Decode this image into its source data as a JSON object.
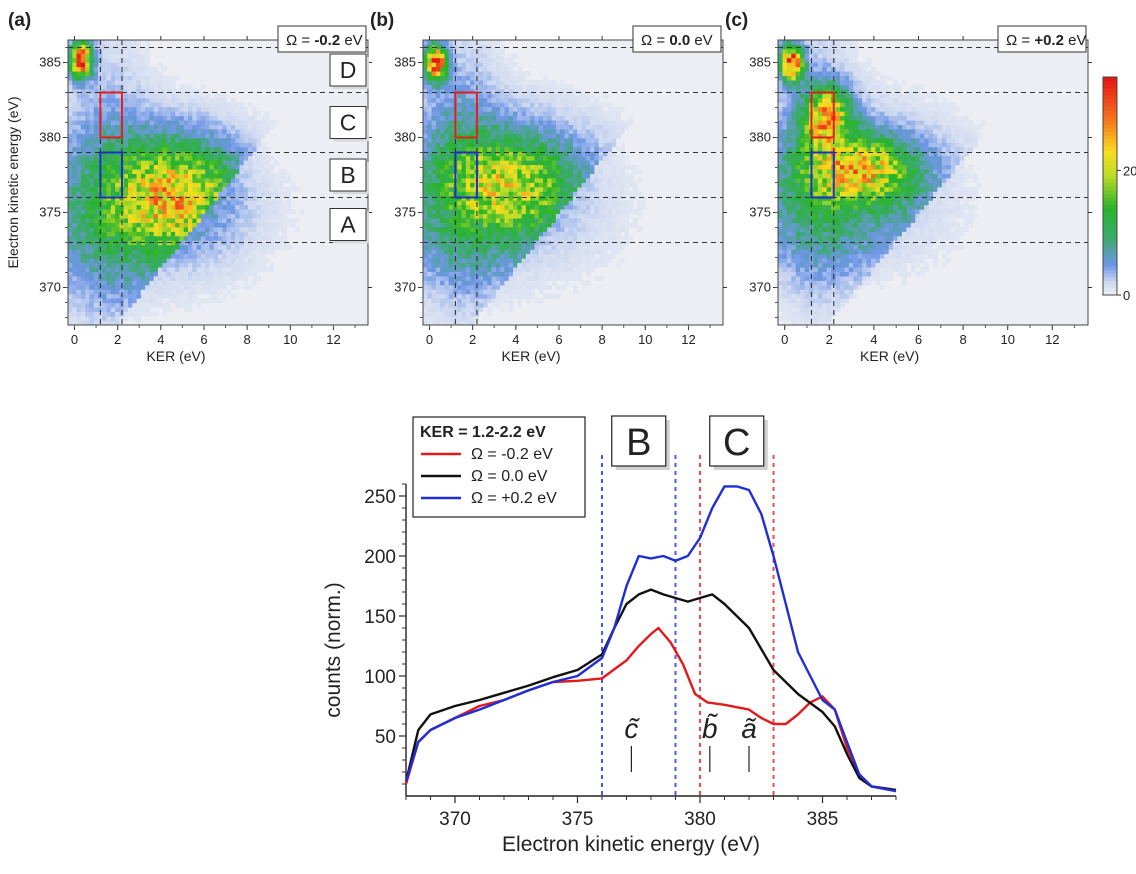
{
  "chart_data": [
    {
      "type": "heatmap",
      "panel_label": "(a)",
      "omega_symbol": "Ω",
      "omega_value": "-0.2",
      "omega_unit": "eV",
      "xlabel": "KER (eV)",
      "ylabel": "Electron kinetic energy",
      "ylabel_unit": "(eV)",
      "xlim": [
        -0.3,
        13.6
      ],
      "ylim": [
        367.5,
        386.5
      ],
      "xticks": [
        0,
        2,
        4,
        6,
        8,
        10,
        12
      ],
      "yticks": [
        370,
        375,
        380,
        385
      ],
      "hlines": [
        373,
        376,
        379,
        383,
        386
      ],
      "vlines": [
        1.2,
        2.2
      ],
      "region_labels": [
        {
          "text": "D",
          "y": 384.5
        },
        {
          "text": "C",
          "y": 381
        },
        {
          "text": "B",
          "y": 377.5
        },
        {
          "text": "A",
          "y": 374.2
        }
      ],
      "boxes": [
        {
          "color": "#e02020",
          "x": [
            1.2,
            2.2
          ],
          "y": [
            380,
            383
          ]
        },
        {
          "color": "#2030c0",
          "x": [
            1.2,
            2.2
          ],
          "y": [
            376,
            379
          ]
        }
      ],
      "blobs": [
        {
          "x": 0.3,
          "y": 385.2,
          "sx": 0.35,
          "sy": 0.8,
          "amp": 32
        },
        {
          "x": 4.7,
          "y": 376.2,
          "sx": 2.0,
          "sy": 2.6,
          "amp": 19
        },
        {
          "x": 3.0,
          "y": 374.5,
          "sx": 4.2,
          "sy": 3.6,
          "amp": 6.5
        },
        {
          "x": 1.5,
          "y": 377.5,
          "sx": 1.4,
          "sy": 6.5,
          "amp": 4
        }
      ]
    },
    {
      "type": "heatmap",
      "panel_label": "(b)",
      "omega_symbol": "Ω",
      "omega_value": "0.0",
      "omega_unit": "eV",
      "xlabel": "KER (eV)",
      "xlim": [
        -0.3,
        13.6
      ],
      "ylim": [
        367.5,
        386.5
      ],
      "xticks": [
        0,
        2,
        4,
        6,
        8,
        10,
        12
      ],
      "yticks": [
        370,
        375,
        380,
        385
      ],
      "hlines": [
        373,
        376,
        379,
        383,
        386
      ],
      "vlines": [
        1.2,
        2.2
      ],
      "boxes": [
        {
          "color": "#e02020",
          "x": [
            1.2,
            2.2
          ],
          "y": [
            380,
            383
          ]
        },
        {
          "color": "#2030c0",
          "x": [
            1.2,
            2.2
          ],
          "y": [
            376,
            379
          ]
        }
      ],
      "blobs": [
        {
          "x": 0.3,
          "y": 385.0,
          "sx": 0.35,
          "sy": 0.8,
          "amp": 30
        },
        {
          "x": 4.0,
          "y": 377.0,
          "sx": 1.9,
          "sy": 2.2,
          "amp": 13
        },
        {
          "x": 3.2,
          "y": 375.5,
          "sx": 3.8,
          "sy": 3.8,
          "amp": 8
        },
        {
          "x": 1.4,
          "y": 378.5,
          "sx": 1.3,
          "sy": 5.5,
          "amp": 5
        }
      ]
    },
    {
      "type": "heatmap",
      "panel_label": "(c)",
      "omega_symbol": "Ω",
      "omega_value": "+0.2",
      "omega_unit": "eV",
      "xlabel": "KER (eV)",
      "xlim": [
        -0.3,
        13.6
      ],
      "ylim": [
        367.5,
        386.5
      ],
      "xticks": [
        0,
        2,
        4,
        6,
        8,
        10,
        12
      ],
      "yticks": [
        370,
        375,
        380,
        385
      ],
      "hlines": [
        373,
        376,
        379,
        383,
        386
      ],
      "vlines": [
        1.2,
        2.2
      ],
      "boxes": [
        {
          "color": "#e02020",
          "x": [
            1.2,
            2.2
          ],
          "y": [
            380,
            383
          ]
        },
        {
          "color": "#2030c0",
          "x": [
            1.2,
            2.2
          ],
          "y": [
            376,
            379
          ]
        }
      ],
      "blobs": [
        {
          "x": 0.3,
          "y": 385.0,
          "sx": 0.35,
          "sy": 0.8,
          "amp": 32
        },
        {
          "x": 1.9,
          "y": 381.5,
          "sx": 0.7,
          "sy": 1.3,
          "amp": 20
        },
        {
          "x": 3.5,
          "y": 378.0,
          "sx": 1.6,
          "sy": 1.5,
          "amp": 17
        },
        {
          "x": 3.0,
          "y": 376.0,
          "sx": 3.3,
          "sy": 3.5,
          "amp": 8
        },
        {
          "x": 1.4,
          "y": 378.5,
          "sx": 1.2,
          "sy": 5.5,
          "amp": 5
        }
      ]
    },
    {
      "type": "line",
      "xlabel": "Electron kinetic energy (eV)",
      "ylabel": "counts (norm.)",
      "xlim": [
        368,
        388
      ],
      "ylim": [
        0,
        260
      ],
      "xticks": [
        370,
        375,
        380,
        385
      ],
      "yticks": [
        50,
        100,
        150,
        200,
        250
      ],
      "legend_title": "KER = 1.2-2.2 eV",
      "legend_placement": "top-left",
      "series": [
        {
          "name": "Ω = -0.2 eV",
          "color": "#e31a1c",
          "x": [
            368,
            368.5,
            369,
            370,
            371,
            372,
            373,
            374,
            375,
            376,
            377,
            377.5,
            378,
            378.3,
            378.8,
            379.3,
            379.8,
            380.3,
            381,
            382,
            382.5,
            383,
            383.5,
            384,
            384.5,
            385,
            385.5,
            386,
            386.5,
            387,
            388
          ],
          "y": [
            10,
            45,
            55,
            65,
            75,
            80,
            88,
            95,
            96,
            98,
            113,
            125,
            135,
            140,
            128,
            110,
            85,
            78,
            76,
            72,
            65,
            60,
            60,
            68,
            78,
            83,
            72,
            40,
            18,
            8,
            5
          ]
        },
        {
          "name": "Ω = 0.0 eV",
          "color": "#111111",
          "x": [
            368,
            368.5,
            369,
            370,
            371,
            372,
            373,
            374,
            375,
            376,
            376.5,
            377,
            377.5,
            378,
            378.5,
            379,
            379.5,
            380,
            380.5,
            381,
            382,
            383,
            384,
            385,
            385.5,
            386,
            386.5,
            387,
            388
          ],
          "y": [
            12,
            55,
            68,
            75,
            80,
            86,
            92,
            99,
            105,
            118,
            140,
            160,
            168,
            172,
            168,
            165,
            162,
            165,
            168,
            160,
            140,
            105,
            85,
            70,
            58,
            35,
            15,
            8,
            5
          ]
        },
        {
          "name": "Ω = +0.2 eV",
          "color": "#1f2fd6",
          "x": [
            368,
            368.5,
            369,
            370,
            371,
            372,
            373,
            374,
            375,
            376,
            376.5,
            377,
            377.5,
            378,
            378.5,
            379,
            379.5,
            380,
            380.5,
            381,
            381.5,
            382,
            382.5,
            383,
            383.5,
            384,
            385,
            385.5,
            386,
            386.5,
            387,
            388
          ],
          "y": [
            12,
            45,
            55,
            65,
            72,
            80,
            88,
            95,
            100,
            115,
            140,
            175,
            200,
            198,
            200,
            196,
            200,
            215,
            240,
            258,
            258,
            255,
            235,
            200,
            160,
            120,
            80,
            72,
            45,
            18,
            8,
            4
          ]
        }
      ],
      "vlines": [
        {
          "x": 376,
          "color": "#4a5cf0"
        },
        {
          "x": 379,
          "color": "#4a5cf0"
        },
        {
          "x": 380,
          "color": "#f04a4a"
        },
        {
          "x": 383,
          "color": "#f04a4a"
        }
      ],
      "region_labels": [
        {
          "text": "B",
          "x": 377.5
        },
        {
          "text": "C",
          "x": 381.5
        }
      ],
      "annotations": [
        {
          "text": "c̃",
          "x": 377.2
        },
        {
          "text": "b̃",
          "x": 380.4
        },
        {
          "text": "ã",
          "x": 382.0
        }
      ]
    }
  ],
  "colorbar": {
    "ticks": [
      {
        "value": 0,
        "label": "0"
      },
      {
        "value": 20,
        "label": "20"
      }
    ],
    "max": 35
  }
}
